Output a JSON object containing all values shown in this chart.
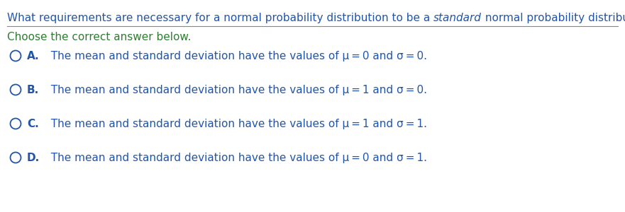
{
  "title_part1": "What requirements are necessary for a normal probability distribution to be a ",
  "title_italic": "standard",
  "title_part2": " normal probability distribution?",
  "subtitle": "Choose the correct answer below.",
  "options": [
    {
      "letter": "A.",
      "text": "  The mean and standard deviation have the values of μ = 0 and σ = 0."
    },
    {
      "letter": "B.",
      "text": "  The mean and standard deviation have the values of μ = 1 and σ = 0."
    },
    {
      "letter": "C.",
      "text": "  The mean and standard deviation have the values of μ = 1 and σ = 1."
    },
    {
      "letter": "D.",
      "text": "  The mean and standard deviation have the values of μ = 0 and σ = 1."
    }
  ],
  "text_color": "#2255aa",
  "title_color": "#2255aa",
  "subtitle_color": "#2e7d32",
  "background_color": "#ffffff",
  "circle_color": "#2255aa",
  "font_size": 11.0,
  "line_color": "#888888"
}
